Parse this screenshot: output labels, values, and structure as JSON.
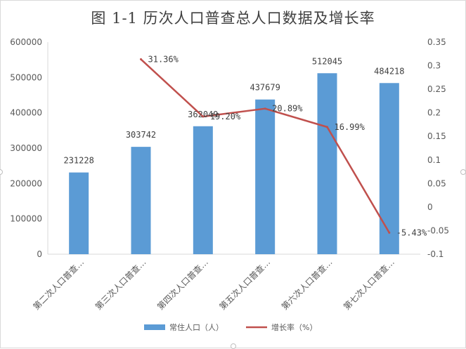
{
  "chart_data": {
    "type": "bar",
    "title": "图 1-1   历次人口普查总人口数据及增长率",
    "categories": [
      "第二次人口普查…",
      "第三次人口普查…",
      "第四次人口普查…",
      "第五次人口普查…",
      "第六次人口普查…",
      "第七次人口普查…"
    ],
    "series": [
      {
        "name": "常住人口（人）",
        "type": "bar",
        "axis": "left",
        "color": "#5b9bd5",
        "values": [
          231228,
          303742,
          362049,
          437679,
          512045,
          484218
        ],
        "labels": [
          "231228",
          "303742",
          "362049",
          "437679",
          "512045",
          "484218"
        ]
      },
      {
        "name": "增长率（%）",
        "type": "line",
        "axis": "right",
        "color": "#c0504d",
        "values": [
          null,
          0.3136,
          0.192,
          0.2089,
          0.1699,
          -0.0543
        ],
        "labels": [
          "",
          "31.36%",
          "19.20%",
          "20.89%",
          "16.99%",
          "-5.43%"
        ]
      }
    ],
    "ylim_left": [
      0,
      600000
    ],
    "ylim_right": [
      -0.1,
      0.35
    ],
    "left_ticks": [
      "0",
      "100000",
      "200000",
      "300000",
      "400000",
      "500000",
      "600000"
    ],
    "right_ticks": [
      "-0.1",
      "-0.05",
      "0",
      "0.05",
      "0.1",
      "0.15",
      "0.2",
      "0.25",
      "0.3",
      "0.35"
    ],
    "legend_position": "bottom",
    "grid": false
  }
}
